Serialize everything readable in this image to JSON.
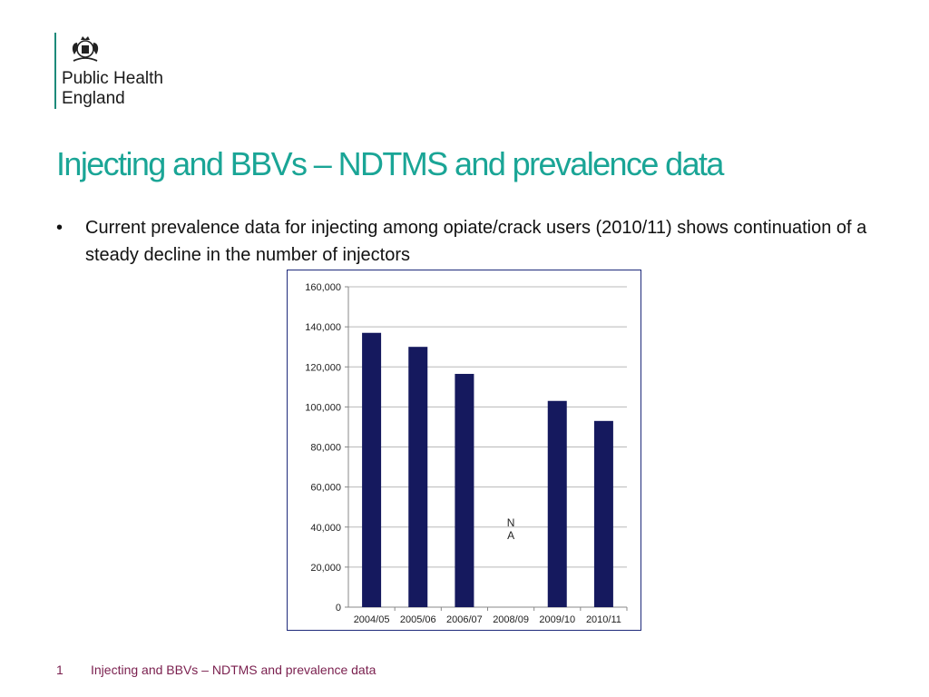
{
  "logo": {
    "name": "crest-icon",
    "org_line1": "Public Health",
    "org_line2": "England"
  },
  "slide": {
    "title": "Injecting and BBVs – NDTMS and prevalence data",
    "bullets": [
      "Current prevalence data for injecting among opiate/crack users (2010/11) shows continuation of a steady decline in the number of injectors"
    ],
    "footer_page": "1",
    "footer_text": "Injecting and BBVs – NDTMS and prevalence data"
  },
  "colors": {
    "title": "#1aa596",
    "bar": "#15195e",
    "frame": "#1e2a7a",
    "footer": "#7a1f4e"
  },
  "chart_data": {
    "type": "bar",
    "categories": [
      "2004/05",
      "2005/06",
      "2006/07",
      "2008/09",
      "2009/10",
      "2010/11"
    ],
    "values": [
      137000,
      130000,
      116500,
      null,
      103000,
      93000
    ],
    "ylim": [
      0,
      160000
    ],
    "ytick_labels": [
      "0",
      "20,000",
      "40,000",
      "60,000",
      "80,000",
      "100,000",
      "120,000",
      "140,000",
      "160,000"
    ],
    "ytick_values": [
      0,
      20000,
      40000,
      60000,
      80000,
      100000,
      120000,
      140000,
      160000
    ],
    "grid": true,
    "legend": "none",
    "annotations": [
      {
        "category": "2008/09",
        "text_line1": "N",
        "text_line2": "A",
        "y": 40000
      }
    ]
  }
}
